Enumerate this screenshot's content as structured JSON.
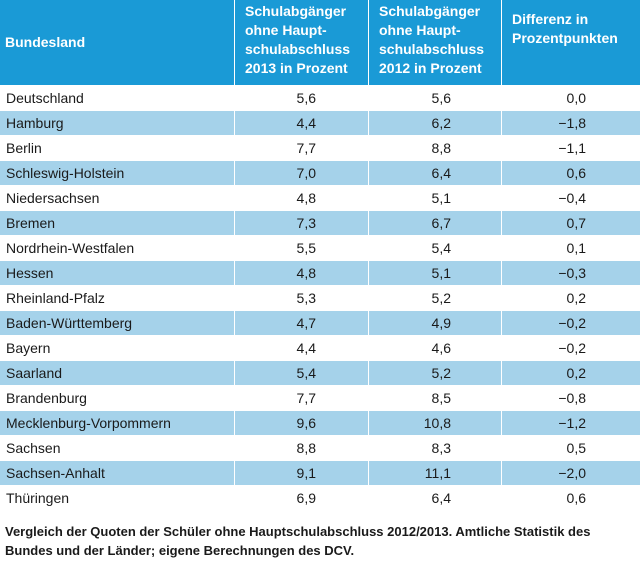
{
  "header": {
    "col1": "Bundesland",
    "col2": "Schulabgänger\nohne Haupt-\nschulabschluss\n2013 in Prozent",
    "col3": "Schulabgänger\nohne Haupt-\nschulabschluss\n2012 in Prozent",
    "col4": "Differenz in\nProzentpunkten"
  },
  "rows": [
    {
      "land": "Deutschland",
      "v2013": "5,6",
      "v2012": "5,6",
      "diff": "0,0"
    },
    {
      "land": "Hamburg",
      "v2013": "4,4",
      "v2012": "6,2",
      "diff": "−1,8"
    },
    {
      "land": "Berlin",
      "v2013": "7,7",
      "v2012": "8,8",
      "diff": "−1,1"
    },
    {
      "land": "Schleswig-Holstein",
      "v2013": "7,0",
      "v2012": "6,4",
      "diff": "0,6"
    },
    {
      "land": "Niedersachsen",
      "v2013": "4,8",
      "v2012": "5,1",
      "diff": "−0,4"
    },
    {
      "land": "Bremen",
      "v2013": "7,3",
      "v2012": "6,7",
      "diff": "0,7"
    },
    {
      "land": "Nordrhein-Westfalen",
      "v2013": "5,5",
      "v2012": "5,4",
      "diff": "0,1"
    },
    {
      "land": "Hessen",
      "v2013": "4,8",
      "v2012": "5,1",
      "diff": "−0,3"
    },
    {
      "land": "Rheinland-Pfalz",
      "v2013": "5,3",
      "v2012": "5,2",
      "diff": "0,2"
    },
    {
      "land": "Baden-Württemberg",
      "v2013": "4,7",
      "v2012": "4,9",
      "diff": "−0,2"
    },
    {
      "land": "Bayern",
      "v2013": "4,4",
      "v2012": "4,6",
      "diff": "−0,2"
    },
    {
      "land": "Saarland",
      "v2013": "5,4",
      "v2012": "5,2",
      "diff": "0,2"
    },
    {
      "land": "Brandenburg",
      "v2013": "7,7",
      "v2012": "8,5",
      "diff": "−0,8"
    },
    {
      "land": "Mecklenburg-Vorpommern",
      "v2013": "9,6",
      "v2012": "10,8",
      "diff": "−1,2"
    },
    {
      "land": "Sachsen",
      "v2013": "8,8",
      "v2012": "8,3",
      "diff": "0,5"
    },
    {
      "land": "Sachsen-Anhalt",
      "v2013": "9,1",
      "v2012": "11,1",
      "diff": "−2,0"
    },
    {
      "land": "Thüringen",
      "v2013": "6,9",
      "v2012": "6,4",
      "diff": "0,6"
    }
  ],
  "caption": "Vergleich der Quoten der Schüler ohne Hauptschulabschluss 2012/2013. Amtliche Statistik des Bundes und der Länder; eigene Berechnungen des DCV.",
  "colors": {
    "header_bg": "#1a9ad6",
    "row_shade": "#a5d2ea",
    "row_plain": "#ffffff"
  }
}
